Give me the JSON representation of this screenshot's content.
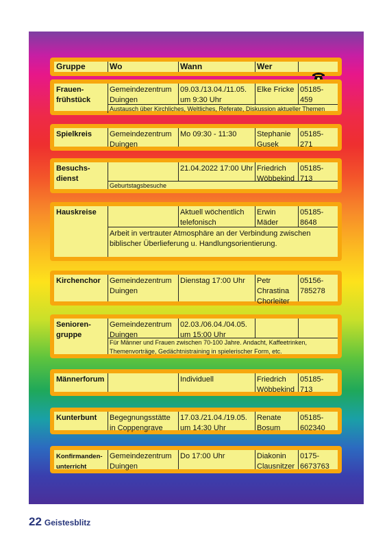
{
  "header": {
    "gruppe": "Gruppe",
    "wo": "Wo",
    "wann": "Wann",
    "wer": "Wer",
    "icon": "telephone-icon"
  },
  "rows": [
    {
      "gruppe": "Frauen-\nfrühstück",
      "wo": "Gemeindezentrum\nDuingen",
      "wann": "09.03./13.04./11.05.\num 9:30 Uhr",
      "wer": "Elke Fricke",
      "tel": "05185-\n459",
      "desc": "Austausch über Kirchliches, Weltliches, Referate, Diskussion aktueller Themen"
    },
    {
      "gruppe": "Spielkreis",
      "wo": "Gemeindezentrum\nDuingen",
      "wann": "Mo 09:30 - 11:30",
      "wer": "Stephanie\nGusek",
      "tel": "05185-\n271"
    },
    {
      "gruppe": "Besuchs-\ndienst",
      "wo": "",
      "wann": "21.04.2022 17:00 Uhr",
      "wer": "Friedrich\nWöbbekind",
      "tel": "05185-\n713",
      "desc": "Geburtstagsbesuche"
    },
    {
      "gruppe": "Hauskreise",
      "wo": "",
      "wann": "Aktuell wöchentlich\ntelefonisch",
      "wer": "Erwin\nMäder",
      "tel": "05185-\n8648",
      "desc": "Arbeit in vertrauter Atmosphäre an der Verbindung zwischen biblischer Überlieferung u. Handlungsorientierung."
    },
    {
      "gruppe": "Kirchenchor",
      "wo": "Gemeindezentrum\nDuingen",
      "wann": "Dienstag 17:00 Uhr",
      "wer": "Petr\nChrastina\nChorleiter",
      "tel": "05156-\n785278"
    },
    {
      "gruppe": "Senioren-\ngruppe",
      "wo": "Gemeindezentrum\nDuingen",
      "wann": "02.03./06.04./04.05.\num 15:00 Uhr",
      "wer": "",
      "tel": "",
      "desc": "Für Männer und Frauen zwischen 70-100 Jahre. Andacht, Kaffeetrinken, Themenvorträge, Gedächtnistraining in spielerischer Form, etc."
    },
    {
      "gruppe": "Männerforum",
      "wo": "",
      "wann": "Individuell",
      "wer": "Friedrich\nWöbbekind",
      "tel": "05185-\n713"
    },
    {
      "gruppe": "Kunterbunt",
      "wo": "Begegnungsstätte\nin Coppengrave",
      "wann": "17.03./21.04./19.05.\num 14:30 Uhr",
      "wer": "Renate\nBosum",
      "tel": "05185-\n602340"
    },
    {
      "gruppe": "Konfirmanden-\nunterricht",
      "wo": "Gemeindezentrum\nDuingen",
      "wann": "Do 17:00 Uhr",
      "wer": "Diakonin\nClausnitzer",
      "tel": "0175-\n6673763"
    }
  ],
  "footer": {
    "page": "22",
    "title": "Geistesblitz"
  },
  "colors": {
    "box_border": "#f7a70e",
    "box_fill": "#f6f28b",
    "footer_text": "#27357b"
  }
}
